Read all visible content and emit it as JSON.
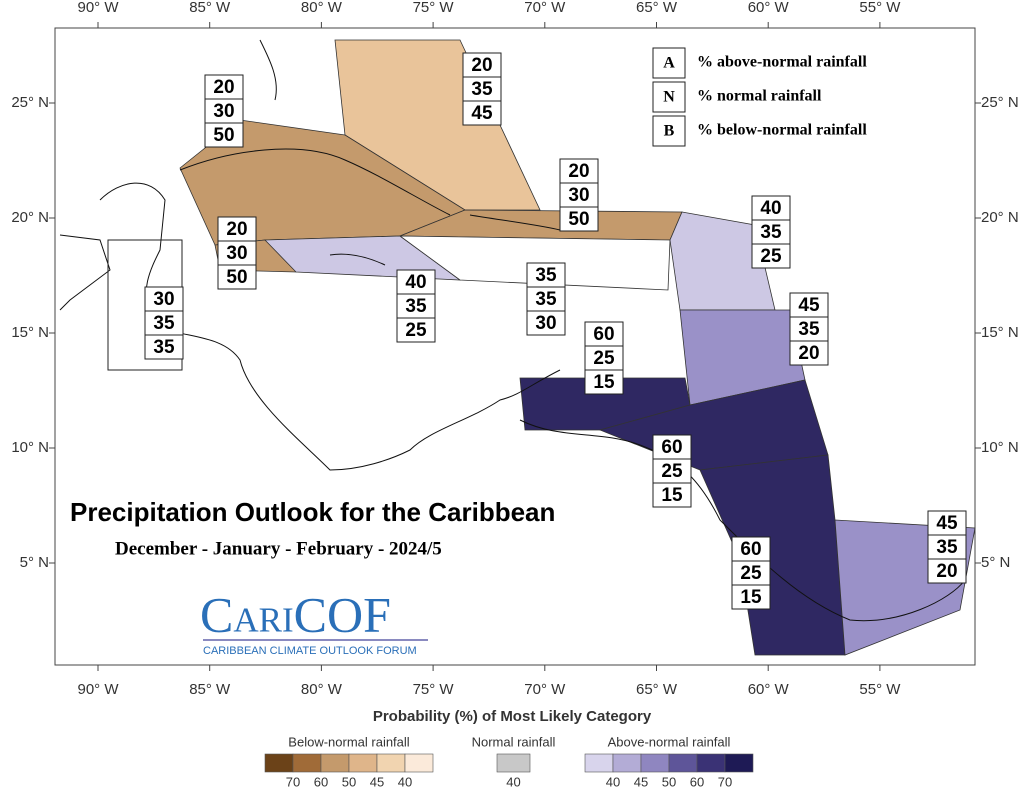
{
  "map": {
    "title": "Precipitation Outlook for the Caribbean",
    "subtitle": "December - January - February - 2024/5",
    "lon_labels": [
      "90° W",
      "85° W",
      "80° W",
      "75° W",
      "70° W",
      "65° W",
      "60° W",
      "55° W"
    ],
    "lat_labels": [
      "25° N",
      "20° N",
      "15° N",
      "10° N",
      "5° N"
    ],
    "key": [
      {
        "letter": "A",
        "text": "% above-normal rainfall"
      },
      {
        "letter": "N",
        "text": "% normal rainfall"
      },
      {
        "letter": "B",
        "text": "% below-normal rainfall"
      }
    ],
    "regions": [
      {
        "values": [
          "20",
          "35",
          "45"
        ],
        "color": "#e9c49a"
      },
      {
        "values": [
          "20",
          "30",
          "50"
        ],
        "color": "#c49a6c"
      },
      {
        "values": [
          "20",
          "30",
          "50"
        ],
        "color": "#c49a6c"
      },
      {
        "values": [
          "40",
          "35",
          "25"
        ],
        "color": "#cdc8e4"
      },
      {
        "values": [
          "20",
          "30",
          "50"
        ],
        "color": "#c49a6c"
      },
      {
        "values": [
          "35",
          "35",
          "30"
        ],
        "color": "#ffffff"
      },
      {
        "values": [
          "30",
          "35",
          "35"
        ],
        "color": "#ffffff"
      },
      {
        "values": [
          "40",
          "35",
          "25"
        ],
        "color": "#cdc8e4"
      },
      {
        "values": [
          "45",
          "35",
          "20"
        ],
        "color": "#9a91c8"
      },
      {
        "values": [
          "60",
          "25",
          "15"
        ],
        "color": "#2f2862"
      },
      {
        "values": [
          "60",
          "25",
          "15"
        ],
        "color": "#2f2862"
      },
      {
        "values": [
          "60",
          "25",
          "15"
        ],
        "color": "#2f2862"
      },
      {
        "values": [
          "45",
          "35",
          "20"
        ],
        "color": "#9a91c8"
      }
    ],
    "logo": {
      "name": "CariCOF",
      "subtitle": "CARIBBEAN CLIMATE OUTLOOK FORUM"
    },
    "legend": {
      "title": "Probability (%) of Most Likely Category",
      "groups": [
        {
          "label": "Below-normal rainfall",
          "ticks": [
            "70",
            "60",
            "50",
            "45",
            "40"
          ],
          "colors": [
            "#6b4218",
            "#a06b38",
            "#c49a6c",
            "#dfb58a",
            "#f1d4b0",
            "#fbeada"
          ]
        },
        {
          "label": "Normal rainfall",
          "ticks": [
            "40"
          ],
          "colors": [
            "#c8c8c8"
          ]
        },
        {
          "label": "Above-normal rainfall",
          "ticks": [
            "40",
            "45",
            "50",
            "60",
            "70"
          ],
          "colors": [
            "#d8d4ec",
            "#b3acd6",
            "#8f86c0",
            "#5e5599",
            "#3a3275",
            "#1e1a55"
          ]
        }
      ]
    }
  }
}
